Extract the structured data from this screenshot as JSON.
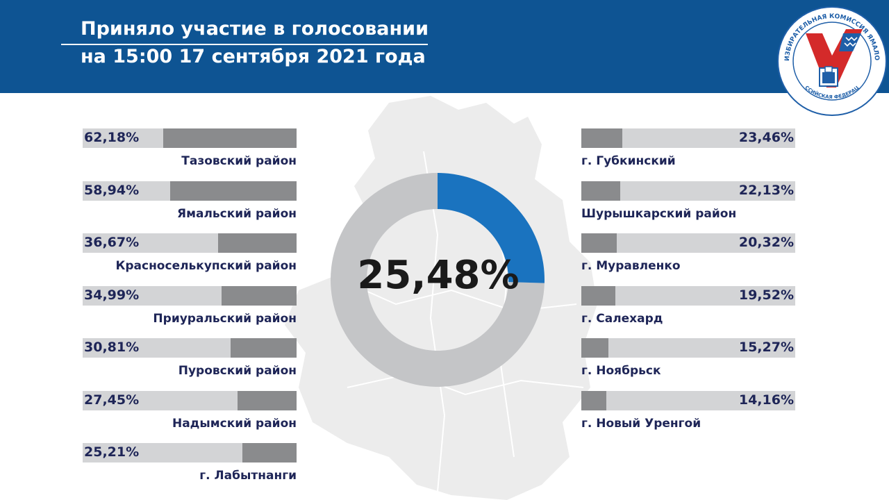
{
  "header": {
    "title_line1": "Приняло участие в голосовании",
    "title_line2": "на 15:00 17 сентября 2021 года"
  },
  "logo": {
    "ring_text": "ИЗБИРАТЕЛЬНАЯ КОМИССИЯ ЯМАЛО-НЕНЕЦКОГО АВТОНОМНОГО ОКРУГА",
    "bottom_text": "РОССИЙСКАЯ ФЕДЕРАЦИЯ"
  },
  "colors": {
    "header": "#0e5493",
    "text": "#1e2557",
    "bar_track": "#d3d4d6",
    "bar_fill": "#8a8b8d",
    "donut_accent": "#1a73bf",
    "donut_track": "#c4c5c7"
  },
  "chart_data": [
    {
      "type": "bar",
      "orientation": "horizontal",
      "value_unit": "%",
      "xlim": [
        0,
        100
      ],
      "categories": [
        "Тазовский район",
        "Ямальский район",
        "Красноселькупский район",
        "Приуральский район",
        "Пуровский район",
        "Надымский район",
        "г. Лабытнанги"
      ],
      "values": [
        62.18,
        58.94,
        36.67,
        34.99,
        30.81,
        27.45,
        25.21
      ],
      "value_labels": [
        "62,18%",
        "58,94%",
        "36,67%",
        "34,99%",
        "30,81%",
        "27,45%",
        "25,21%"
      ]
    },
    {
      "type": "bar",
      "orientation": "horizontal",
      "value_unit": "%",
      "xlim": [
        0,
        100
      ],
      "categories": [
        "г. Губкинский",
        "Шурышкарский район",
        "г. Муравленко",
        "г. Салехард",
        "г. Ноябрьск",
        "г. Новый Уренгой"
      ],
      "values": [
        23.46,
        22.13,
        20.32,
        19.52,
        15.27,
        14.16
      ],
      "value_labels": [
        "23,46%",
        "22,13%",
        "20,32%",
        "19,52%",
        "15,27%",
        "14,16%"
      ]
    },
    {
      "type": "pie",
      "subtype": "donut",
      "values": [
        25.48,
        74.52
      ],
      "value_label": "25,48%"
    }
  ]
}
